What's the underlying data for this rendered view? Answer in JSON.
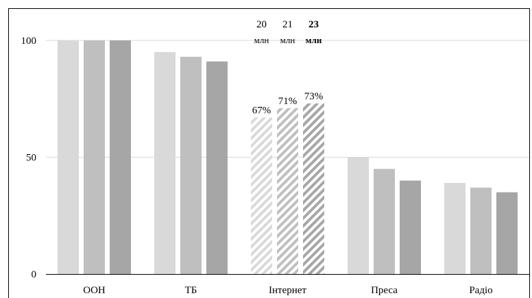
{
  "chart_data": {
    "type": "bar",
    "categories": [
      "ООН",
      "ТБ",
      "Інтернет",
      "Преса",
      "Радіо"
    ],
    "series": [
      {
        "values": [
          100,
          95,
          67,
          50,
          39
        ],
        "color": "#d9d9d9"
      },
      {
        "values": [
          100,
          93,
          71,
          45,
          37
        ],
        "color": "#bfbfbf"
      },
      {
        "values": [
          100,
          91,
          73,
          40,
          35
        ],
        "color": "#a6a6a6"
      }
    ],
    "hatched_category": "Інтернет",
    "data_labels": {
      "Інтернет": [
        "67%",
        "71%",
        "73%"
      ]
    },
    "top_annotations": {
      "Інтернет": [
        {
          "number": "20",
          "unit": "млн",
          "bold": false
        },
        {
          "number": "21",
          "unit": "млн",
          "bold": false
        },
        {
          "number": "23",
          "unit": "млн",
          "bold": true
        }
      ]
    },
    "y_ticks": [
      "0",
      "50",
      "100"
    ],
    "ylim": [
      0,
      100
    ],
    "title": "",
    "xlabel": "",
    "ylabel": "",
    "grid": true,
    "gridline_color": "#d9d9d9",
    "axis_color": "#000000"
  }
}
